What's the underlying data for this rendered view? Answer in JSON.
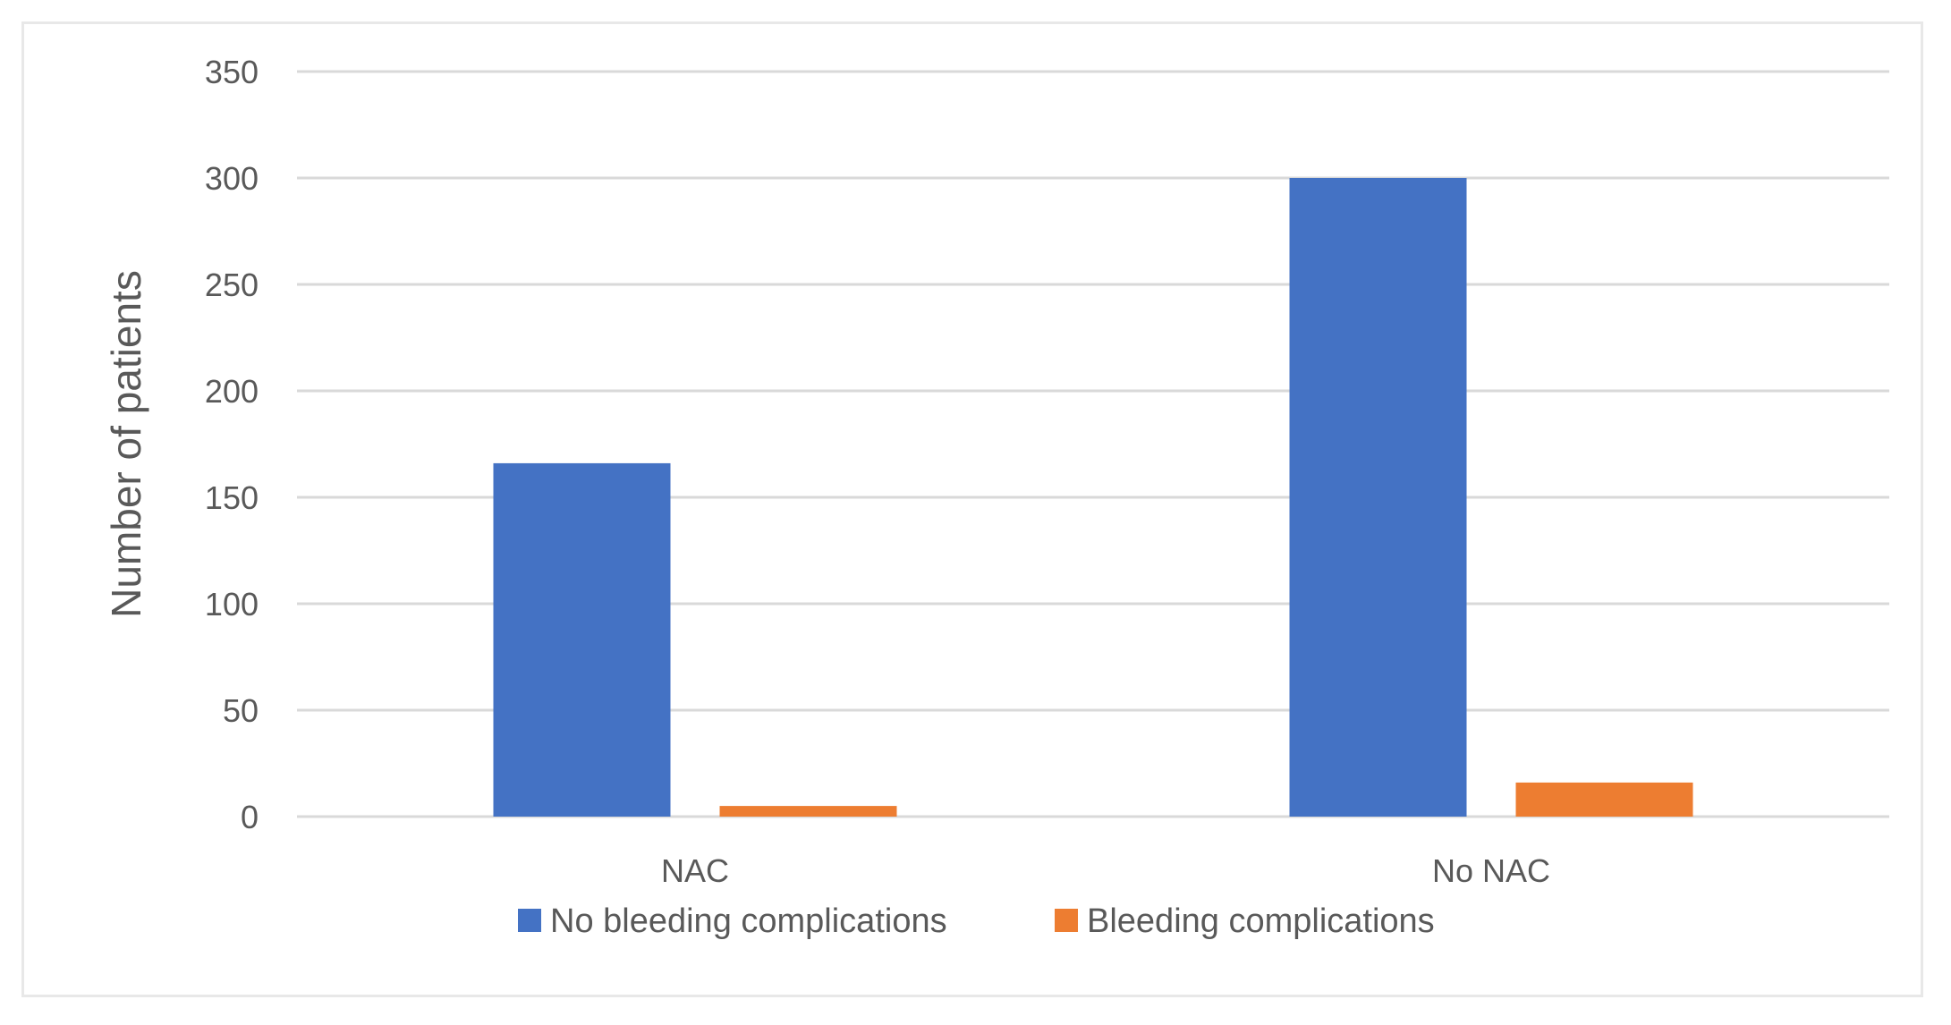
{
  "chart_data": {
    "type": "bar",
    "title": "",
    "xlabel": "",
    "ylabel": "Number of patients",
    "categories": [
      "NAC",
      "No NAC"
    ],
    "series": [
      {
        "name": "No bleeding complications",
        "color": "#4472c4",
        "values": [
          166,
          300
        ]
      },
      {
        "name": "Bleeding complications",
        "color": "#ed7d31",
        "values": [
          5,
          16
        ]
      }
    ],
    "ylim": [
      0,
      350
    ],
    "yticks": [
      0,
      50,
      100,
      150,
      200,
      250,
      300,
      350
    ],
    "grid": true,
    "legend_position": "bottom"
  }
}
